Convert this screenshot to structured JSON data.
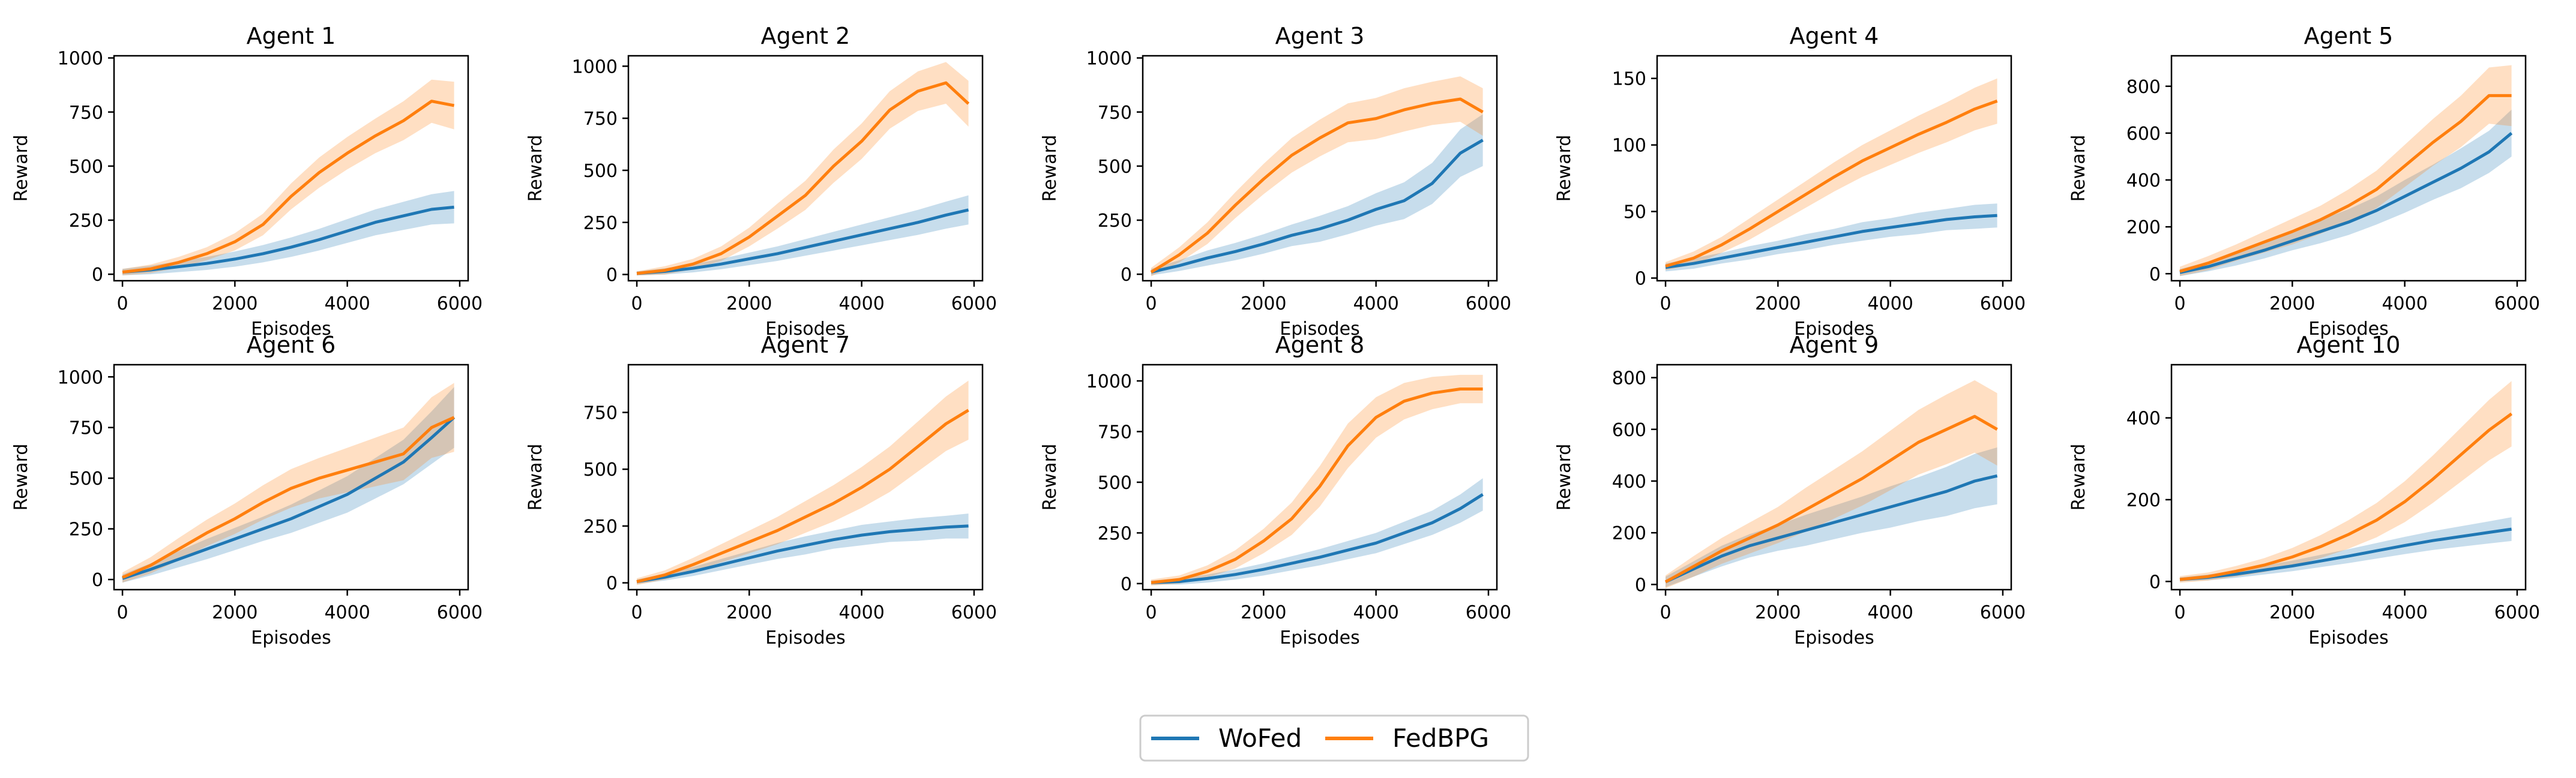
{
  "figure": {
    "legend": {
      "placement": "bottom-center",
      "entries": [
        {
          "label": "WoFed",
          "color": "#1f77b4"
        },
        {
          "label": "FedBPG",
          "color": "#ff7f0e"
        }
      ]
    }
  },
  "chart_data": [
    {
      "type": "line",
      "title": "Agent 1",
      "xlabel": "Episodes",
      "ylabel": "Reward",
      "xlim": [
        -150,
        6150
      ],
      "ylim": [
        -30,
        1010
      ],
      "xticks": [
        0,
        2000,
        4000,
        6000
      ],
      "yticks": [
        0,
        250,
        500,
        750,
        1000
      ],
      "x": [
        0,
        500,
        1000,
        1500,
        2000,
        2500,
        3000,
        3500,
        4000,
        4500,
        5000,
        5500,
        5900
      ],
      "series": [
        {
          "name": "WoFed",
          "color": "#1f77b4",
          "values": [
            10,
            20,
            35,
            50,
            70,
            95,
            125,
            160,
            200,
            240,
            270,
            300,
            310
          ],
          "band": [
            15,
            20,
            25,
            30,
            35,
            40,
            45,
            50,
            55,
            60,
            65,
            70,
            75
          ]
        },
        {
          "name": "FedBPG",
          "color": "#ff7f0e",
          "values": [
            10,
            25,
            55,
            95,
            150,
            230,
            360,
            470,
            560,
            640,
            710,
            800,
            780
          ],
          "band": [
            15,
            20,
            25,
            30,
            40,
            50,
            60,
            70,
            75,
            80,
            90,
            100,
            110
          ]
        }
      ]
    },
    {
      "type": "line",
      "title": "Agent 2",
      "xlabel": "Episodes",
      "ylabel": "Reward",
      "xlim": [
        -150,
        6150
      ],
      "ylim": [
        -30,
        1050
      ],
      "xticks": [
        0,
        2000,
        4000,
        6000
      ],
      "yticks": [
        0,
        250,
        500,
        750,
        1000
      ],
      "x": [
        0,
        500,
        1000,
        1500,
        2000,
        2500,
        3000,
        3500,
        4000,
        4500,
        5000,
        5500,
        5900
      ],
      "series": [
        {
          "name": "WoFed",
          "color": "#1f77b4",
          "values": [
            5,
            15,
            30,
            50,
            75,
            100,
            130,
            160,
            190,
            220,
            250,
            285,
            310
          ],
          "band": [
            10,
            15,
            20,
            25,
            30,
            35,
            40,
            45,
            50,
            55,
            60,
            65,
            70
          ]
        },
        {
          "name": "FedBPG",
          "color": "#ff7f0e",
          "values": [
            5,
            20,
            50,
            100,
            180,
            280,
            380,
            520,
            640,
            790,
            880,
            920,
            820
          ],
          "band": [
            10,
            20,
            25,
            35,
            45,
            60,
            70,
            80,
            85,
            90,
            95,
            100,
            110
          ]
        }
      ]
    },
    {
      "type": "line",
      "title": "Agent 3",
      "xlabel": "Episodes",
      "ylabel": "Reward",
      "xlim": [
        -150,
        6150
      ],
      "ylim": [
        -30,
        1010
      ],
      "xticks": [
        0,
        2000,
        4000,
        6000
      ],
      "yticks": [
        0,
        250,
        500,
        750,
        1000
      ],
      "x": [
        0,
        500,
        1000,
        1500,
        2000,
        2500,
        3000,
        3500,
        4000,
        4500,
        5000,
        5500,
        5900
      ],
      "series": [
        {
          "name": "WoFed",
          "color": "#1f77b4",
          "values": [
            10,
            40,
            75,
            105,
            140,
            180,
            210,
            250,
            300,
            340,
            420,
            560,
            620
          ],
          "band": [
            15,
            25,
            35,
            40,
            45,
            50,
            60,
            65,
            75,
            85,
            95,
            110,
            120
          ]
        },
        {
          "name": "FedBPG",
          "color": "#ff7f0e",
          "values": [
            10,
            90,
            190,
            320,
            440,
            550,
            630,
            700,
            720,
            760,
            790,
            810,
            750
          ],
          "band": [
            20,
            35,
            50,
            60,
            70,
            80,
            85,
            90,
            95,
            100,
            100,
            105,
            110
          ]
        }
      ]
    },
    {
      "type": "line",
      "title": "Agent 4",
      "xlabel": "Episodes",
      "ylabel": "Reward",
      "xlim": [
        -150,
        6150
      ],
      "ylim": [
        -2,
        167
      ],
      "xticks": [
        0,
        2000,
        4000,
        6000
      ],
      "yticks": [
        0,
        50,
        100,
        150
      ],
      "x": [
        0,
        500,
        1000,
        1500,
        2000,
        2500,
        3000,
        3500,
        4000,
        4500,
        5000,
        5500,
        5900
      ],
      "series": [
        {
          "name": "WoFed",
          "color": "#1f77b4",
          "values": [
            8,
            11,
            15,
            19,
            23,
            27,
            31,
            35,
            38,
            41,
            44,
            46,
            47
          ],
          "band": [
            3,
            4,
            4,
            5,
            5,
            6,
            6,
            7,
            7,
            8,
            8,
            9,
            9
          ]
        },
        {
          "name": "FedBPG",
          "color": "#ff7f0e",
          "values": [
            9,
            15,
            25,
            37,
            50,
            63,
            76,
            88,
            98,
            108,
            117,
            127,
            133
          ],
          "band": [
            3,
            5,
            6,
            8,
            9,
            10,
            11,
            12,
            13,
            14,
            15,
            16,
            17
          ]
        }
      ]
    },
    {
      "type": "line",
      "title": "Agent 5",
      "xlabel": "Episodes",
      "ylabel": "Reward",
      "xlim": [
        -150,
        6150
      ],
      "ylim": [
        -30,
        930
      ],
      "xticks": [
        0,
        2000,
        4000,
        6000
      ],
      "yticks": [
        0,
        200,
        400,
        600,
        800
      ],
      "x": [
        0,
        500,
        1000,
        1500,
        2000,
        2500,
        3000,
        3500,
        4000,
        4500,
        5000,
        5500,
        5900
      ],
      "series": [
        {
          "name": "WoFed",
          "color": "#1f77b4",
          "values": [
            5,
            30,
            65,
            100,
            140,
            180,
            220,
            270,
            330,
            390,
            450,
            520,
            600
          ],
          "band": [
            15,
            20,
            30,
            35,
            40,
            50,
            55,
            60,
            70,
            75,
            85,
            90,
            100
          ]
        },
        {
          "name": "FedBPG",
          "color": "#ff7f0e",
          "values": [
            10,
            45,
            90,
            135,
            180,
            230,
            290,
            360,
            460,
            560,
            650,
            760,
            760
          ],
          "band": [
            20,
            30,
            35,
            45,
            55,
            60,
            70,
            80,
            90,
            100,
            110,
            120,
            130
          ]
        }
      ]
    },
    {
      "type": "line",
      "title": "Agent 6",
      "xlabel": "Episodes",
      "ylabel": "Reward",
      "xlim": [
        -150,
        6150
      ],
      "ylim": [
        -50,
        1060
      ],
      "xticks": [
        0,
        2000,
        4000,
        6000
      ],
      "yticks": [
        0,
        250,
        500,
        750,
        1000
      ],
      "x": [
        0,
        500,
        1000,
        1500,
        2000,
        2500,
        3000,
        3500,
        4000,
        4500,
        5000,
        5500,
        5900
      ],
      "series": [
        {
          "name": "WoFed",
          "color": "#1f77b4",
          "values": [
            5,
            50,
            100,
            150,
            200,
            250,
            300,
            360,
            420,
            500,
            580,
            700,
            800
          ],
          "band": [
            20,
            30,
            40,
            50,
            55,
            60,
            70,
            80,
            90,
            100,
            110,
            130,
            150
          ]
        },
        {
          "name": "FedBPG",
          "color": "#ff7f0e",
          "values": [
            10,
            70,
            150,
            230,
            300,
            380,
            450,
            500,
            540,
            580,
            620,
            750,
            800
          ],
          "band": [
            25,
            40,
            55,
            65,
            75,
            85,
            95,
            100,
            110,
            120,
            130,
            150,
            170
          ]
        }
      ]
    },
    {
      "type": "line",
      "title": "Agent 7",
      "xlabel": "Episodes",
      "ylabel": "Reward",
      "xlim": [
        -150,
        6150
      ],
      "ylim": [
        -30,
        960
      ],
      "xticks": [
        0,
        2000,
        4000,
        6000
      ],
      "yticks": [
        0,
        250,
        500,
        750
      ],
      "x": [
        0,
        500,
        1000,
        1500,
        2000,
        2500,
        3000,
        3500,
        4000,
        4500,
        5000,
        5500,
        5900
      ],
      "series": [
        {
          "name": "WoFed",
          "color": "#1f77b4",
          "values": [
            5,
            25,
            50,
            80,
            110,
            140,
            165,
            190,
            210,
            225,
            235,
            245,
            250
          ],
          "band": [
            10,
            15,
            20,
            25,
            30,
            35,
            40,
            40,
            45,
            45,
            50,
            50,
            55
          ]
        },
        {
          "name": "FedBPG",
          "color": "#ff7f0e",
          "values": [
            5,
            35,
            80,
            130,
            180,
            230,
            290,
            350,
            420,
            500,
            600,
            700,
            760
          ],
          "band": [
            15,
            20,
            30,
            40,
            50,
            60,
            70,
            80,
            90,
            100,
            110,
            120,
            130
          ]
        }
      ]
    },
    {
      "type": "line",
      "title": "Agent 8",
      "xlabel": "Episodes",
      "ylabel": "Reward",
      "xlim": [
        -150,
        6150
      ],
      "ylim": [
        -30,
        1080
      ],
      "xticks": [
        0,
        2000,
        4000,
        6000
      ],
      "yticks": [
        0,
        250,
        500,
        750,
        1000
      ],
      "x": [
        0,
        500,
        1000,
        1500,
        2000,
        2500,
        3000,
        3500,
        4000,
        4500,
        5000,
        5500,
        5900
      ],
      "series": [
        {
          "name": "WoFed",
          "color": "#1f77b4",
          "values": [
            5,
            10,
            25,
            45,
            70,
            100,
            130,
            165,
            200,
            250,
            300,
            370,
            440
          ],
          "band": [
            10,
            15,
            20,
            25,
            30,
            35,
            40,
            45,
            50,
            55,
            60,
            70,
            80
          ]
        },
        {
          "name": "FedBPG",
          "color": "#ff7f0e",
          "values": [
            5,
            20,
            60,
            120,
            210,
            320,
            480,
            680,
            820,
            900,
            940,
            960,
            960
          ],
          "band": [
            15,
            20,
            30,
            45,
            60,
            80,
            100,
            110,
            100,
            90,
            80,
            70,
            70
          ]
        }
      ]
    },
    {
      "type": "line",
      "title": "Agent 9",
      "xlabel": "Episodes",
      "ylabel": "Reward",
      "xlim": [
        -150,
        6150
      ],
      "ylim": [
        -20,
        850
      ],
      "xticks": [
        0,
        2000,
        4000,
        6000
      ],
      "yticks": [
        0,
        200,
        400,
        600,
        800
      ],
      "x": [
        0,
        500,
        1000,
        1500,
        2000,
        2500,
        3000,
        3500,
        4000,
        4500,
        5000,
        5500,
        5900
      ],
      "series": [
        {
          "name": "WoFed",
          "color": "#1f77b4",
          "values": [
            10,
            60,
            110,
            150,
            180,
            210,
            240,
            270,
            300,
            330,
            360,
            400,
            420
          ],
          "band": [
            20,
            30,
            40,
            45,
            50,
            60,
            65,
            70,
            80,
            85,
            95,
            105,
            110
          ]
        },
        {
          "name": "FedBPG",
          "color": "#ff7f0e",
          "values": [
            10,
            70,
            130,
            180,
            230,
            290,
            350,
            410,
            480,
            550,
            600,
            650,
            600
          ],
          "band": [
            25,
            40,
            50,
            60,
            70,
            85,
            95,
            105,
            115,
            125,
            135,
            140,
            140
          ]
        }
      ]
    },
    {
      "type": "line",
      "title": "Agent 10",
      "xlabel": "Episodes",
      "ylabel": "Reward",
      "xlim": [
        -150,
        6150
      ],
      "ylim": [
        -20,
        530
      ],
      "xticks": [
        0,
        2000,
        4000,
        6000
      ],
      "yticks": [
        0,
        200,
        400
      ],
      "x": [
        0,
        500,
        1000,
        1500,
        2000,
        2500,
        3000,
        3500,
        4000,
        4500,
        5000,
        5500,
        5900
      ],
      "series": [
        {
          "name": "WoFed",
          "color": "#1f77b4",
          "values": [
            5,
            10,
            18,
            28,
            38,
            50,
            62,
            75,
            88,
            100,
            110,
            120,
            128
          ],
          "band": [
            5,
            7,
            9,
            11,
            13,
            15,
            17,
            19,
            21,
            23,
            25,
            27,
            29
          ]
        },
        {
          "name": "FedBPG",
          "color": "#ff7f0e",
          "values": [
            5,
            12,
            25,
            40,
            60,
            85,
            115,
            150,
            195,
            250,
            310,
            370,
            410
          ],
          "band": [
            8,
            10,
            13,
            17,
            22,
            28,
            35,
            42,
            50,
            58,
            66,
            74,
            80
          ]
        }
      ]
    }
  ]
}
